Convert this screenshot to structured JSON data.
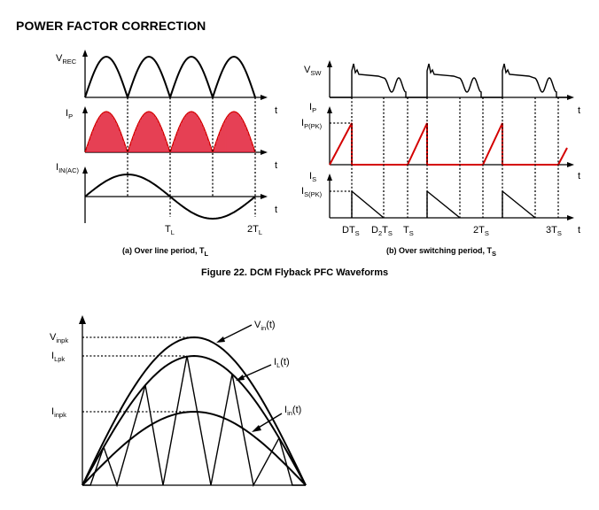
{
  "page": {
    "heading": "POWER FACTOR CORRECTION",
    "figure_caption": "Figure 22.  DCM Flyback PFC Waveforms"
  },
  "panel_a": {
    "caption": "(a) Over line period, T",
    "caption_sub": "L",
    "labels": {
      "vrec": "V",
      "vrec_sub": "REC",
      "ip": "I",
      "ip_sub": "P",
      "iin": "I",
      "iin_sub": "IN(AC)",
      "t": "t",
      "tl": "T",
      "tl_sub": "L",
      "two_tl": "2T",
      "two_tl_sub": "L"
    }
  },
  "panel_b": {
    "caption": "(b) Over switching period, T",
    "caption_sub": "S",
    "labels": {
      "vsw": "V",
      "vsw_sub": "SW",
      "ip": "I",
      "ip_sub": "P",
      "ippk": "I",
      "ippk_sub": "P(PK)",
      "is": "I",
      "is_sub": "S",
      "ispk": "I",
      "ispk_sub": "S(PK)",
      "t": "t",
      "dts": "DT",
      "dts_sub": "S",
      "d2ts": "D",
      "d2ts_sub": "2",
      "d2ts_tail": "T",
      "d2ts_tail_sub": "S",
      "ts": "T",
      "ts_sub": "S",
      "two_ts": "2T",
      "two_ts_sub": "S",
      "three_ts": "3T",
      "three_ts_sub": "S"
    }
  },
  "panel_c": {
    "labels": {
      "vinpk": "V",
      "vinpk_sub": "inpk",
      "ilpk": "I",
      "ilpk_sub": "Lpk",
      "iinpk": "I",
      "iinpk_sub": "inpk",
      "vin": "V",
      "vin_sub": "in",
      "vin_tail": "(t)",
      "il": "I",
      "il_sub": "L",
      "il_tail": "(t)",
      "iin": "I",
      "iin_sub": "in",
      "iin_tail": "(t)"
    }
  }
}
